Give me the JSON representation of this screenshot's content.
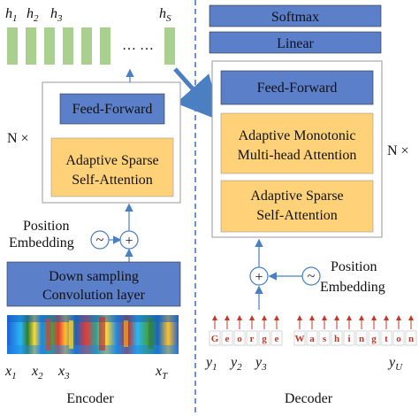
{
  "encoder": {
    "hidden_labels": [
      "h",
      "h",
      "h",
      "h"
    ],
    "hidden_subs": [
      "1",
      "2",
      "3",
      "S"
    ],
    "ellipsis": "… …",
    "feed_forward": "Feed-Forward",
    "self_attention_line1": "Adaptive Sparse",
    "self_attention_line2": "Self-Attention",
    "repeat": "N ×",
    "position_line1": "Position",
    "position_line2": "Embedding",
    "sine": "~",
    "plus": "+",
    "downsample_line1": "Down sampling",
    "downsample_line2": "Convolution layer",
    "input_labels": [
      "x",
      "x",
      "x",
      "x"
    ],
    "input_subs": [
      "1",
      "2",
      "3",
      "T"
    ],
    "caption": "Encoder"
  },
  "decoder": {
    "softmax": "Softmax",
    "linear": "Linear",
    "feed_forward": "Feed-Forward",
    "mono_attention_line1": "Adaptive Monotonic",
    "mono_attention_line2": "Multi-head Attention",
    "self_attention_line1": "Adaptive Sparse",
    "self_attention_line2": "Self-Attention",
    "repeat": "N ×",
    "position_line1": "Position",
    "position_line2": "Embedding",
    "sine": "~",
    "plus": "+",
    "token_chars": [
      "G",
      "e",
      "o",
      "r",
      "g",
      "e",
      "W",
      "a",
      "s",
      "h",
      "i",
      "n",
      "g",
      "t",
      "o",
      "n"
    ],
    "output_labels": [
      "y",
      "y",
      "y",
      "y"
    ],
    "output_subs": [
      "1",
      "2",
      "3",
      "U"
    ],
    "caption": "Decoder"
  },
  "colors": {
    "blue_box": "#5b7fc9",
    "orange_box": "#ffd27a",
    "green_bar": "#a9d08e",
    "divider": "#3a6fc4",
    "arrow": "#4a7fc1",
    "token_red": "#c0392b"
  }
}
